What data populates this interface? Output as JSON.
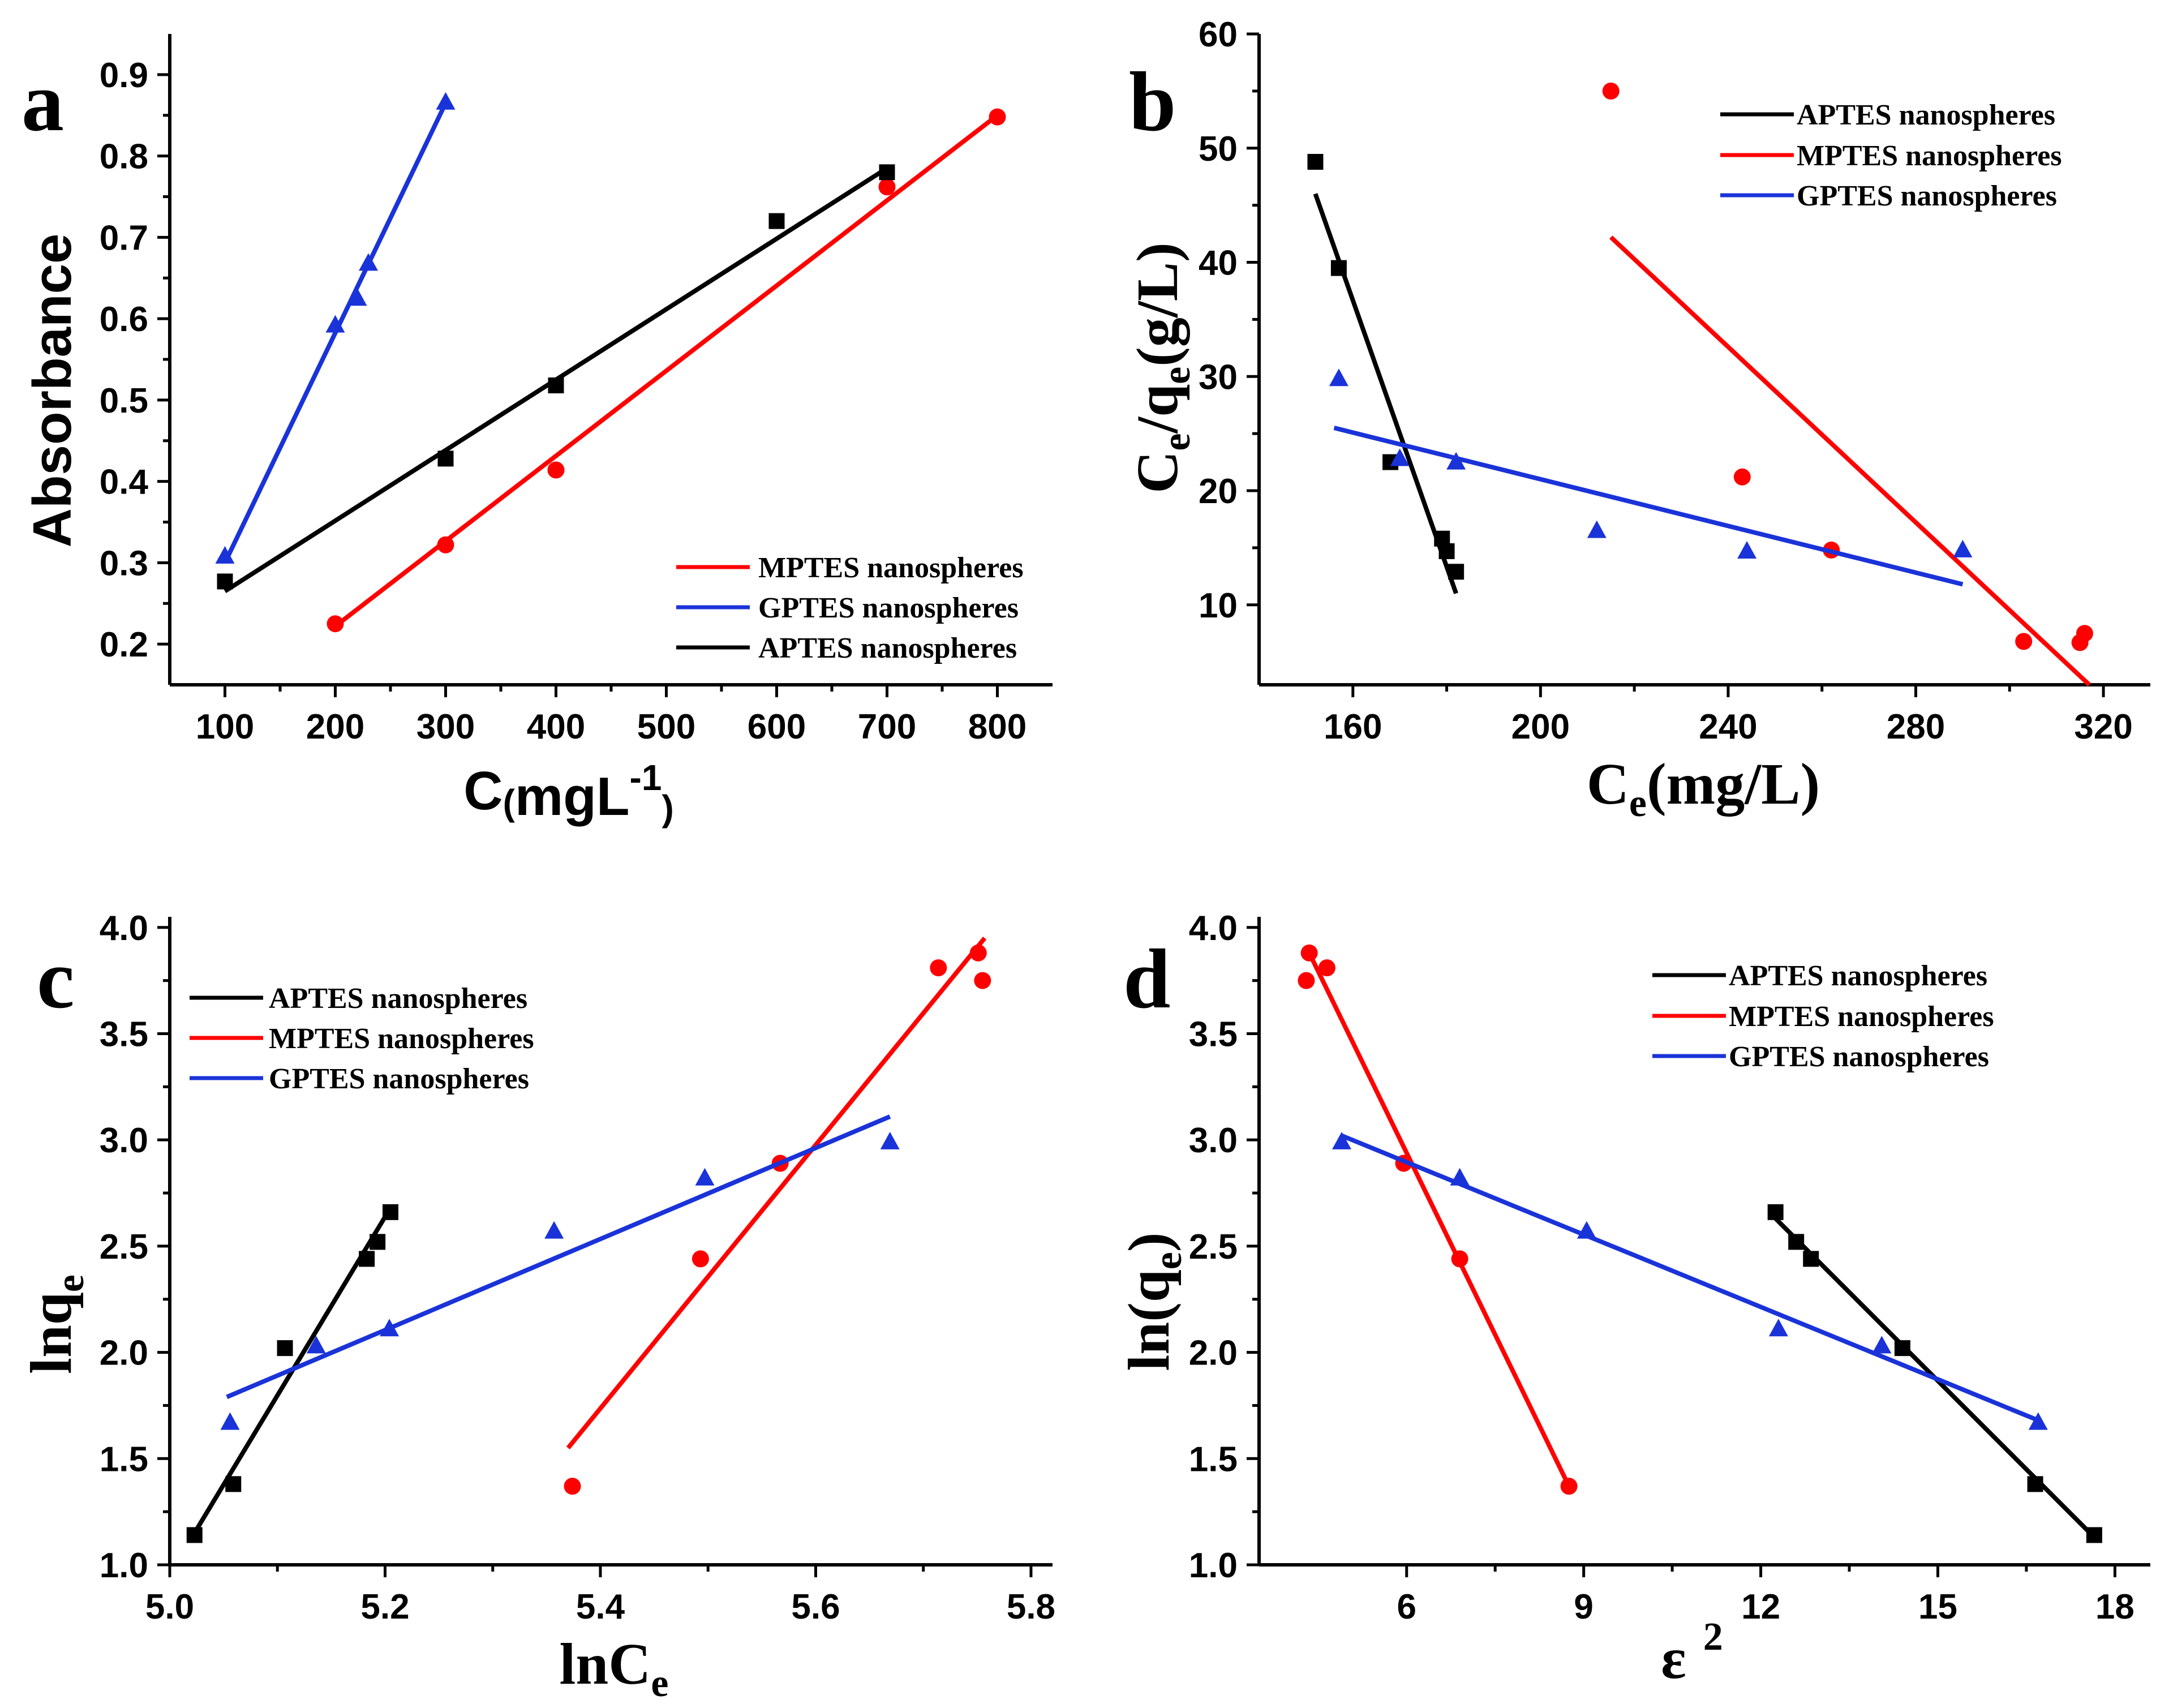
{
  "colors": {
    "APTES": "#000000",
    "MPTES": "#ff0000",
    "GPTES": "#1a33d9"
  },
  "chart_data": [
    {
      "type": "scatter",
      "panel_label": "a",
      "xlabel": {
        "main": "C",
        "paren_open": "(",
        "unit": "mgL",
        "sup": "-1",
        "paren_close": ")"
      },
      "ylabel": {
        "main": "Absorbance"
      },
      "xlim": [
        50,
        850
      ],
      "ylim": [
        0.15,
        0.95
      ],
      "xticks": [
        100,
        200,
        300,
        400,
        500,
        600,
        700,
        800
      ],
      "xtick_labels": [
        "100",
        "200",
        "300",
        "400",
        "500",
        "600",
        "700",
        "800"
      ],
      "yticks": [
        0.2,
        0.3,
        0.4,
        0.5,
        0.6,
        0.7,
        0.8,
        0.9
      ],
      "ytick_labels": [
        "0.2",
        "0.3",
        "0.4",
        "0.5",
        "0.6",
        "0.7",
        "0.8",
        "0.9"
      ],
      "legend_position": "bottom-right",
      "legend": [
        "MPTES nanospheres",
        "GPTES nanospheres",
        "APTES nanospheres"
      ],
      "series": [
        {
          "name": "MPTES nanospheres",
          "color_key": "MPTES",
          "marker": "circle",
          "x": [
            200,
            300,
            400,
            700,
            800
          ],
          "y": [
            0.225,
            0.322,
            0.414,
            0.762,
            0.848
          ],
          "fit": [
            [
              200,
              0.222
            ],
            [
              800,
              0.85
            ]
          ]
        },
        {
          "name": "GPTES nanospheres",
          "color_key": "GPTES",
          "marker": "triangle",
          "x": [
            100,
            200,
            220,
            230,
            300
          ],
          "y": [
            0.308,
            0.592,
            0.625,
            0.668,
            0.866
          ],
          "fit": [
            [
              100,
              0.3
            ],
            [
              300,
              0.865
            ]
          ]
        },
        {
          "name": "APTES nanospheres",
          "color_key": "APTES",
          "marker": "square",
          "x": [
            100,
            300,
            400,
            600,
            700
          ],
          "y": [
            0.277,
            0.428,
            0.518,
            0.72,
            0.78
          ],
          "fit": [
            [
              100,
              0.265
            ],
            [
              700,
              0.785
            ]
          ]
        }
      ]
    },
    {
      "type": "scatter",
      "panel_label": "b",
      "xlabel": {
        "main": "C",
        "sub": "e",
        "rest": "(mg/L)"
      },
      "ylabel": {
        "main": "C",
        "sub1": "e",
        "mid": "/q",
        "sub2": "e",
        "rest": "(g/L)"
      },
      "xlim": [
        140,
        330
      ],
      "ylim": [
        3,
        60
      ],
      "xticks": [
        160,
        200,
        240,
        280,
        320
      ],
      "xtick_labels": [
        "160",
        "200",
        "240",
        "280",
        "320"
      ],
      "yticks": [
        10,
        20,
        30,
        40,
        50,
        60
      ],
      "ytick_labels": [
        "10",
        "20",
        "30",
        "40",
        "50",
        "60"
      ],
      "legend_position": "top-right",
      "legend": [
        "APTES nanospheres",
        "MPTES nanospheres",
        "GPTES nanospheres"
      ],
      "series": [
        {
          "name": "APTES nanospheres",
          "color_key": "APTES",
          "marker": "square",
          "x": [
            152,
            157,
            168,
            179,
            180,
            182
          ],
          "y": [
            48.8,
            39.5,
            22.5,
            15.8,
            14.7,
            12.9
          ],
          "fit": [
            [
              152,
              46
            ],
            [
              182,
              11
            ]
          ]
        },
        {
          "name": "MPTES nanospheres",
          "color_key": "MPTES",
          "marker": "circle",
          "x": [
            215,
            243,
            262,
            303,
            315,
            316
          ],
          "y": [
            55,
            21.2,
            14.8,
            6.8,
            6.7,
            7.5
          ],
          "fit": [
            [
              215,
              42.2
            ],
            [
              317,
              3
            ]
          ]
        },
        {
          "name": "GPTES nanospheres",
          "color_key": "GPTES",
          "marker": "triangle",
          "x": [
            157,
            170,
            182,
            212,
            244,
            290
          ],
          "y": [
            29.8,
            22.8,
            22.5,
            16.5,
            14.7,
            14.8
          ],
          "fit": [
            [
              156,
              25.5
            ],
            [
              290,
              11.8
            ]
          ]
        }
      ]
    },
    {
      "type": "scatter",
      "panel_label": "c",
      "xlabel": {
        "main": "lnC",
        "sub": "e"
      },
      "ylabel": {
        "main": "lnq",
        "sub": "e"
      },
      "xlim": [
        5.0,
        5.82
      ],
      "ylim": [
        1.0,
        4.05
      ],
      "xticks": [
        5.0,
        5.2,
        5.4,
        5.6,
        5.8
      ],
      "xtick_labels": [
        "5.0",
        "5.2",
        "5.4",
        "5.6",
        "5.8"
      ],
      "yticks": [
        1.0,
        1.5,
        2.0,
        2.5,
        3.0,
        3.5,
        4.0
      ],
      "ytick_labels": [
        "1.0",
        "1.5",
        "2.0",
        "2.5",
        "3.0",
        "3.5",
        "4.0"
      ],
      "legend_position": "top-left",
      "legend": [
        "APTES nanospheres",
        "MPTES nanospheres",
        "GPTES nanospheres"
      ],
      "series": [
        {
          "name": "APTES nanospheres",
          "color_key": "APTES",
          "marker": "square",
          "x": [
            5.023,
            5.059,
            5.107,
            5.183,
            5.193,
            5.205
          ],
          "y": [
            1.14,
            1.38,
            2.02,
            2.44,
            2.52,
            2.66
          ],
          "fit": [
            [
              5.023,
              1.15
            ],
            [
              5.205,
              2.68
            ]
          ]
        },
        {
          "name": "MPTES nanospheres",
          "color_key": "MPTES",
          "marker": "circle",
          "x": [
            5.374,
            5.493,
            5.567,
            5.714,
            5.751,
            5.755
          ],
          "y": [
            1.37,
            2.44,
            2.89,
            3.81,
            3.88,
            3.75
          ],
          "fit": [
            [
              5.37,
              1.55
            ],
            [
              5.757,
              3.95
            ]
          ]
        },
        {
          "name": "GPTES nanospheres",
          "color_key": "GPTES",
          "marker": "triangle",
          "x": [
            5.056,
            5.136,
            5.204,
            5.357,
            5.497,
            5.669
          ],
          "y": [
            1.67,
            2.03,
            2.11,
            2.57,
            2.82,
            2.99
          ],
          "fit": [
            [
              5.053,
              1.79
            ],
            [
              5.669,
              3.11
            ]
          ]
        }
      ]
    },
    {
      "type": "scatter",
      "panel_label": "d",
      "xlabel": {
        "main": "ε",
        "sup": "2"
      },
      "ylabel": {
        "main": "ln(q",
        "sub": "e",
        "rest": ")"
      },
      "xlim": [
        3.5,
        18.6
      ],
      "ylim": [
        1.0,
        4.05
      ],
      "xticks": [
        6,
        9,
        12,
        15,
        18
      ],
      "xtick_labels": [
        "6",
        "9",
        "12",
        "15",
        "18"
      ],
      "yticks": [
        1.0,
        1.5,
        2.0,
        2.5,
        3.0,
        3.5,
        4.0
      ],
      "ytick_labels": [
        "1.0",
        "1.5",
        "2.0",
        "2.5",
        "3.0",
        "3.5",
        "4.0"
      ],
      "legend_position": "top-right",
      "legend": [
        "APTES nanospheres",
        "MPTES nanospheres",
        "GPTES nanospheres"
      ],
      "series": [
        {
          "name": "APTES nanospheres",
          "color_key": "APTES",
          "marker": "square",
          "x": [
            12.25,
            12.6,
            12.85,
            14.4,
            16.65,
            17.65
          ],
          "y": [
            2.66,
            2.52,
            2.44,
            2.02,
            1.38,
            1.14
          ],
          "fit": [
            [
              12.25,
              2.63
            ],
            [
              17.65,
              1.13
            ]
          ]
        },
        {
          "name": "MPTES nanospheres",
          "color_key": "MPTES",
          "marker": "circle",
          "x": [
            4.3,
            4.35,
            4.65,
            5.95,
            6.9,
            8.75
          ],
          "y": [
            3.75,
            3.88,
            3.81,
            2.89,
            2.44,
            1.37
          ],
          "fit": [
            [
              4.35,
              3.88
            ],
            [
              8.75,
              1.37
            ]
          ]
        },
        {
          "name": "GPTES nanospheres",
          "color_key": "GPTES",
          "marker": "triangle",
          "x": [
            4.9,
            6.9,
            9.05,
            12.3,
            14.05,
            16.7
          ],
          "y": [
            2.99,
            2.82,
            2.57,
            2.11,
            2.03,
            1.67
          ],
          "fit": [
            [
              4.9,
              3.02
            ],
            [
              16.7,
              1.68
            ]
          ]
        }
      ]
    }
  ]
}
